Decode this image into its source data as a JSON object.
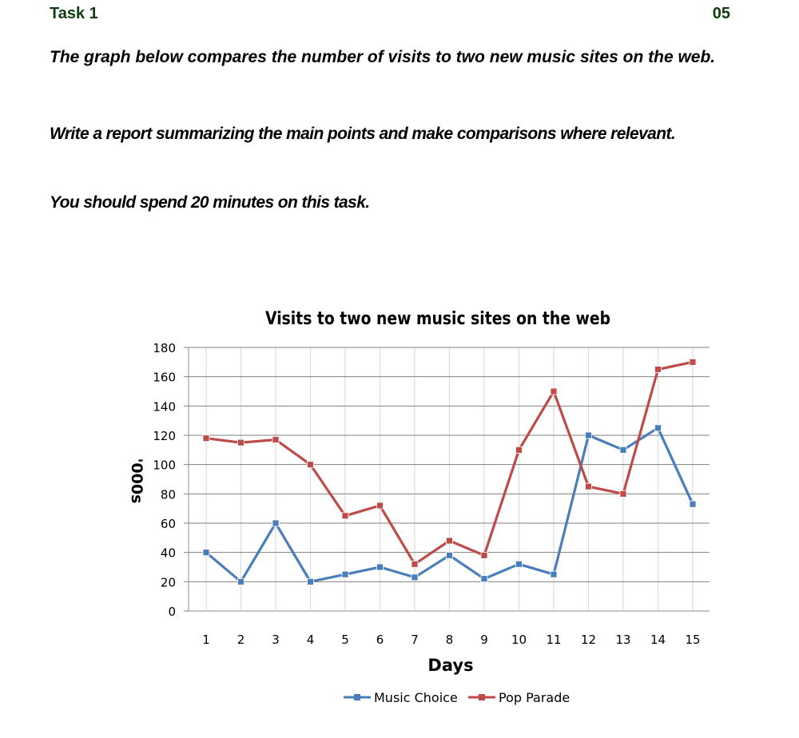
{
  "header": {
    "task": "Task 1",
    "page": "05"
  },
  "prompt": {
    "line1": "The graph below compares the number of visits to two new music sites on the web.",
    "line2": "Write a report summarizing the main points and make comparisons where relevant.",
    "line3": "You should spend 20 minutes on this task."
  },
  "chart_data": {
    "type": "line",
    "title": "Visits to two new music sites on the web",
    "xlabel": "Days",
    "ylabel": "'000s",
    "x": [
      1,
      2,
      3,
      4,
      5,
      6,
      7,
      8,
      9,
      10,
      11,
      12,
      13,
      14,
      15
    ],
    "ylim": [
      0,
      180
    ],
    "yticks": [
      0,
      20,
      40,
      60,
      80,
      100,
      120,
      140,
      160,
      180
    ],
    "grid": true,
    "legend_position": "bottom",
    "series": [
      {
        "name": "Music Choice",
        "color": "#4a7ebb",
        "values": [
          40,
          20,
          60,
          20,
          25,
          30,
          23,
          38,
          22,
          32,
          25,
          120,
          110,
          125,
          73
        ]
      },
      {
        "name": "Pop Parade",
        "color": "#be4b48",
        "values": [
          118,
          115,
          117,
          100,
          65,
          72,
          32,
          48,
          38,
          110,
          150,
          85,
          80,
          165,
          170
        ]
      }
    ]
  }
}
